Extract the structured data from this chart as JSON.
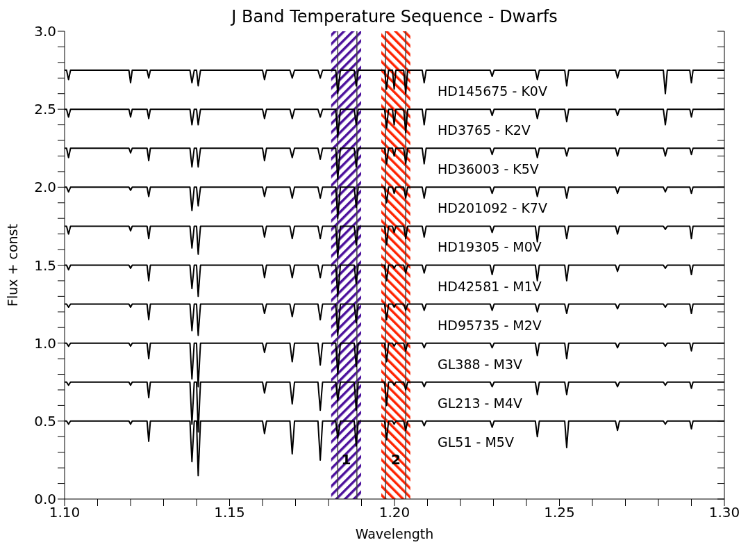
{
  "chart_data": {
    "type": "line",
    "title": "J Band Temperature Sequence - Dwarfs",
    "xlabel": "Wavelength",
    "ylabel": "Flux + const",
    "x": [
      1.1,
      1.1006,
      1.1012,
      1.1018,
      1.105,
      1.11,
      1.1195,
      1.12,
      1.1205,
      1.125,
      1.1255,
      1.126,
      1.13,
      1.1345,
      1.138,
      1.1386,
      1.1393,
      1.14,
      1.1405,
      1.1412,
      1.15,
      1.16,
      1.1606,
      1.1612,
      1.1683,
      1.169,
      1.1697,
      1.1768,
      1.1775,
      1.1782,
      1.1822,
      1.1828,
      1.1836,
      1.1878,
      1.1884,
      1.189,
      1.194,
      1.197,
      1.1976,
      1.1982,
      1.1994,
      1.1999,
      1.2004,
      1.2028,
      1.2034,
      1.204,
      1.2084,
      1.209,
      1.2096,
      1.216,
      1.229,
      1.2296,
      1.2302,
      1.2427,
      1.2433,
      1.2439,
      1.2516,
      1.2522,
      1.2528,
      1.26,
      1.267,
      1.2676,
      1.2682,
      1.2815,
      1.2821,
      1.2827,
      1.2895,
      1.29,
      1.2905,
      1.3
    ],
    "series": [
      {
        "name": "HD145675 - K0V",
        "color": "#000000",
        "values": [
          2.75,
          2.75,
          2.69,
          2.75,
          2.75,
          2.75,
          2.75,
          2.67,
          2.75,
          2.75,
          2.7,
          2.75,
          2.75,
          2.75,
          2.75,
          2.67,
          2.75,
          2.75,
          2.65,
          2.75,
          2.75,
          2.75,
          2.69,
          2.75,
          2.75,
          2.7,
          2.75,
          2.75,
          2.7,
          2.75,
          2.75,
          2.6,
          2.75,
          2.75,
          2.65,
          2.75,
          2.75,
          2.75,
          2.63,
          2.75,
          2.75,
          2.63,
          2.75,
          2.75,
          2.6,
          2.75,
          2.75,
          2.67,
          2.75,
          2.75,
          2.75,
          2.71,
          2.75,
          2.75,
          2.69,
          2.75,
          2.75,
          2.65,
          2.75,
          2.75,
          2.75,
          2.7,
          2.75,
          2.75,
          2.6,
          2.75,
          2.75,
          2.67,
          2.75,
          2.75
        ]
      },
      {
        "name": "HD3765 - K2V",
        "color": "#000000",
        "values": [
          2.5,
          2.5,
          2.45,
          2.5,
          2.5,
          2.5,
          2.5,
          2.45,
          2.5,
          2.5,
          2.44,
          2.5,
          2.5,
          2.5,
          2.5,
          2.4,
          2.5,
          2.5,
          2.4,
          2.5,
          2.5,
          2.5,
          2.44,
          2.5,
          2.5,
          2.44,
          2.5,
          2.5,
          2.45,
          2.5,
          2.5,
          2.32,
          2.5,
          2.5,
          2.4,
          2.5,
          2.5,
          2.5,
          2.38,
          2.5,
          2.5,
          2.4,
          2.5,
          2.5,
          2.35,
          2.5,
          2.5,
          2.4,
          2.5,
          2.5,
          2.5,
          2.46,
          2.5,
          2.5,
          2.44,
          2.5,
          2.5,
          2.42,
          2.5,
          2.5,
          2.5,
          2.46,
          2.5,
          2.5,
          2.4,
          2.5,
          2.5,
          2.45,
          2.5,
          2.5
        ]
      },
      {
        "name": "HD36003 - K5V",
        "color": "#000000",
        "values": [
          2.25,
          2.25,
          2.19,
          2.25,
          2.25,
          2.25,
          2.25,
          2.22,
          2.25,
          2.25,
          2.17,
          2.25,
          2.25,
          2.25,
          2.25,
          2.13,
          2.25,
          2.25,
          2.13,
          2.25,
          2.25,
          2.25,
          2.17,
          2.25,
          2.25,
          2.19,
          2.25,
          2.25,
          2.18,
          2.25,
          2.25,
          2.05,
          2.25,
          2.25,
          2.13,
          2.25,
          2.25,
          2.25,
          2.15,
          2.25,
          2.25,
          2.2,
          2.25,
          2.25,
          2.15,
          2.25,
          2.25,
          2.15,
          2.25,
          2.25,
          2.25,
          2.21,
          2.25,
          2.25,
          2.19,
          2.25,
          2.25,
          2.2,
          2.25,
          2.25,
          2.25,
          2.2,
          2.25,
          2.25,
          2.2,
          2.25,
          2.25,
          2.21,
          2.25,
          2.25
        ]
      },
      {
        "name": "HD201092 - K7V",
        "color": "#000000",
        "values": [
          2.0,
          2.0,
          1.97,
          2.0,
          2.0,
          2.0,
          2.0,
          1.98,
          2.0,
          2.0,
          1.94,
          2.0,
          2.0,
          2.0,
          2.0,
          1.85,
          2.0,
          2.0,
          1.88,
          2.0,
          2.0,
          2.0,
          1.94,
          2.0,
          2.0,
          1.93,
          2.0,
          2.0,
          1.93,
          2.0,
          2.0,
          1.8,
          2.0,
          2.0,
          1.87,
          2.0,
          2.0,
          2.0,
          1.9,
          2.0,
          2.0,
          1.96,
          2.0,
          2.0,
          1.93,
          2.0,
          2.0,
          1.93,
          2.0,
          2.0,
          2.0,
          1.96,
          2.0,
          2.0,
          1.94,
          2.0,
          2.0,
          1.93,
          2.0,
          2.0,
          2.0,
          1.96,
          2.0,
          2.0,
          1.97,
          2.0,
          2.0,
          1.96,
          2.0,
          2.0
        ]
      },
      {
        "name": "HD19305 - M0V",
        "color": "#000000",
        "values": [
          1.75,
          1.75,
          1.7,
          1.75,
          1.75,
          1.75,
          1.75,
          1.72,
          1.75,
          1.75,
          1.67,
          1.75,
          1.75,
          1.75,
          1.75,
          1.61,
          1.75,
          1.75,
          1.57,
          1.75,
          1.75,
          1.75,
          1.68,
          1.75,
          1.75,
          1.67,
          1.75,
          1.75,
          1.67,
          1.75,
          1.75,
          1.55,
          1.75,
          1.75,
          1.63,
          1.75,
          1.75,
          1.75,
          1.63,
          1.75,
          1.75,
          1.71,
          1.75,
          1.75,
          1.67,
          1.75,
          1.75,
          1.68,
          1.75,
          1.75,
          1.75,
          1.71,
          1.75,
          1.75,
          1.65,
          1.75,
          1.75,
          1.67,
          1.75,
          1.75,
          1.75,
          1.7,
          1.75,
          1.75,
          1.73,
          1.75,
          1.75,
          1.67,
          1.75,
          1.75
        ]
      },
      {
        "name": "HD42581 - M1V",
        "color": "#000000",
        "values": [
          1.5,
          1.5,
          1.47,
          1.5,
          1.5,
          1.5,
          1.5,
          1.48,
          1.5,
          1.5,
          1.4,
          1.5,
          1.5,
          1.5,
          1.5,
          1.35,
          1.5,
          1.5,
          1.3,
          1.5,
          1.5,
          1.5,
          1.42,
          1.5,
          1.5,
          1.42,
          1.5,
          1.5,
          1.42,
          1.5,
          1.5,
          1.3,
          1.5,
          1.5,
          1.38,
          1.5,
          1.5,
          1.5,
          1.4,
          1.5,
          1.5,
          1.48,
          1.5,
          1.5,
          1.45,
          1.5,
          1.5,
          1.45,
          1.5,
          1.5,
          1.5,
          1.44,
          1.5,
          1.5,
          1.4,
          1.5,
          1.5,
          1.4,
          1.5,
          1.5,
          1.5,
          1.46,
          1.5,
          1.5,
          1.48,
          1.5,
          1.5,
          1.44,
          1.5,
          1.5
        ]
      },
      {
        "name": "HD95735 - M2V",
        "color": "#000000",
        "values": [
          1.25,
          1.25,
          1.23,
          1.25,
          1.25,
          1.25,
          1.25,
          1.23,
          1.25,
          1.25,
          1.15,
          1.25,
          1.25,
          1.25,
          1.25,
          1.08,
          1.25,
          1.25,
          1.05,
          1.25,
          1.25,
          1.25,
          1.19,
          1.25,
          1.25,
          1.17,
          1.25,
          1.25,
          1.15,
          1.25,
          1.25,
          1.05,
          1.25,
          1.25,
          1.13,
          1.25,
          1.25,
          1.25,
          1.15,
          1.25,
          1.25,
          1.23,
          1.25,
          1.25,
          1.21,
          1.25,
          1.25,
          1.21,
          1.25,
          1.25,
          1.25,
          1.21,
          1.25,
          1.25,
          1.2,
          1.25,
          1.25,
          1.19,
          1.25,
          1.25,
          1.25,
          1.22,
          1.25,
          1.25,
          1.23,
          1.25,
          1.25,
          1.19,
          1.25,
          1.25
        ]
      },
      {
        "name": "GL388 - M3V",
        "color": "#000000",
        "values": [
          1.0,
          1.0,
          0.98,
          1.0,
          1.0,
          1.0,
          1.0,
          0.98,
          1.0,
          1.0,
          0.9,
          1.0,
          1.0,
          1.0,
          1.0,
          0.77,
          1.0,
          1.0,
          0.72,
          1.0,
          1.0,
          1.0,
          0.94,
          1.0,
          1.0,
          0.88,
          1.0,
          1.0,
          0.86,
          1.0,
          1.0,
          0.8,
          1.0,
          1.0,
          0.85,
          1.0,
          1.0,
          1.0,
          0.88,
          1.0,
          1.0,
          0.98,
          1.0,
          1.0,
          0.95,
          1.0,
          1.0,
          0.97,
          1.0,
          1.0,
          1.0,
          0.97,
          1.0,
          1.0,
          0.92,
          1.0,
          1.0,
          0.9,
          1.0,
          1.0,
          1.0,
          0.97,
          1.0,
          1.0,
          0.98,
          1.0,
          1.0,
          0.95,
          1.0,
          1.0
        ]
      },
      {
        "name": "GL213 - M4V",
        "color": "#000000",
        "values": [
          0.75,
          0.75,
          0.73,
          0.75,
          0.75,
          0.75,
          0.75,
          0.73,
          0.75,
          0.75,
          0.65,
          0.75,
          0.75,
          0.75,
          0.75,
          0.48,
          0.75,
          0.75,
          0.43,
          0.75,
          0.75,
          0.75,
          0.68,
          0.75,
          0.75,
          0.61,
          0.75,
          0.75,
          0.57,
          0.75,
          0.75,
          0.63,
          0.75,
          0.75,
          0.57,
          0.75,
          0.75,
          0.75,
          0.6,
          0.75,
          0.75,
          0.73,
          0.75,
          0.75,
          0.7,
          0.75,
          0.75,
          0.72,
          0.75,
          0.75,
          0.75,
          0.72,
          0.75,
          0.75,
          0.67,
          0.75,
          0.75,
          0.67,
          0.75,
          0.75,
          0.75,
          0.72,
          0.75,
          0.75,
          0.73,
          0.75,
          0.75,
          0.71,
          0.75,
          0.75
        ]
      },
      {
        "name": "GL51 - M5V",
        "color": "#000000",
        "values": [
          0.5,
          0.5,
          0.48,
          0.5,
          0.5,
          0.5,
          0.5,
          0.48,
          0.5,
          0.5,
          0.37,
          0.5,
          0.5,
          0.5,
          0.5,
          0.24,
          0.5,
          0.5,
          0.15,
          0.5,
          0.5,
          0.5,
          0.42,
          0.5,
          0.5,
          0.29,
          0.5,
          0.5,
          0.25,
          0.5,
          0.5,
          0.39,
          0.5,
          0.5,
          0.34,
          0.5,
          0.5,
          0.5,
          0.38,
          0.5,
          0.5,
          0.48,
          0.5,
          0.5,
          0.44,
          0.5,
          0.5,
          0.47,
          0.5,
          0.5,
          0.5,
          0.46,
          0.5,
          0.5,
          0.4,
          0.5,
          0.5,
          0.33,
          0.5,
          0.5,
          0.5,
          0.44,
          0.5,
          0.5,
          0.48,
          0.5,
          0.5,
          0.45,
          0.5,
          0.5
        ]
      }
    ],
    "bands": [
      {
        "axis": "x",
        "from": 1.1808,
        "to": 1.1899,
        "label": "1",
        "color": "#4b0f9c"
      },
      {
        "axis": "x",
        "from": 1.196,
        "to": 1.2048,
        "label": "2",
        "color": "#ff2200"
      }
    ],
    "ref_lines": [
      {
        "axis": "x",
        "value": 1.1828,
        "color": "#444444"
      },
      {
        "axis": "x",
        "value": 1.1886,
        "color": "#444444"
      },
      {
        "axis": "x",
        "value": 1.1973,
        "color": "#444444"
      },
      {
        "axis": "x",
        "value": 1.2034,
        "color": "#444444"
      }
    ],
    "xlim": [
      1.1,
      1.3
    ],
    "xticks": [
      {
        "value": 1.1,
        "label": "1.10"
      },
      {
        "value": 1.11,
        "label": null
      },
      {
        "value": 1.12,
        "label": null
      },
      {
        "value": 1.13,
        "label": null
      },
      {
        "value": 1.14,
        "label": null
      },
      {
        "value": 1.15,
        "label": "1.15"
      },
      {
        "value": 1.16,
        "label": null
      },
      {
        "value": 1.17,
        "label": null
      },
      {
        "value": 1.18,
        "label": null
      },
      {
        "value": 1.19,
        "label": null
      },
      {
        "value": 1.2,
        "label": "1.20"
      },
      {
        "value": 1.21,
        "label": null
      },
      {
        "value": 1.22,
        "label": null
      },
      {
        "value": 1.23,
        "label": null
      },
      {
        "value": 1.24,
        "label": null
      },
      {
        "value": 1.25,
        "label": "1.25"
      },
      {
        "value": 1.26,
        "label": null
      },
      {
        "value": 1.27,
        "label": null
      },
      {
        "value": 1.28,
        "label": null
      },
      {
        "value": 1.29,
        "label": null
      },
      {
        "value": 1.3,
        "label": "1.30"
      }
    ],
    "ylim": [
      0,
      3.0
    ],
    "yticks": [
      {
        "value": 0,
        "label": "0.0"
      },
      {
        "value": 0.1,
        "label": null
      },
      {
        "value": 0.2,
        "label": null
      },
      {
        "value": 0.3,
        "label": null
      },
      {
        "value": 0.4,
        "label": null
      },
      {
        "value": 0.5,
        "label": "0.5"
      },
      {
        "value": 0.6,
        "label": null
      },
      {
        "value": 0.7,
        "label": null
      },
      {
        "value": 0.8,
        "label": null
      },
      {
        "value": 0.9,
        "label": null
      },
      {
        "value": 1.0,
        "label": "1.0"
      },
      {
        "value": 1.1,
        "label": null
      },
      {
        "value": 1.2,
        "label": null
      },
      {
        "value": 1.3,
        "label": null
      },
      {
        "value": 1.4,
        "label": null
      },
      {
        "value": 1.5,
        "label": "1.5"
      },
      {
        "value": 1.6,
        "label": null
      },
      {
        "value": 1.7,
        "label": null
      },
      {
        "value": 1.8,
        "label": null
      },
      {
        "value": 1.9,
        "label": null
      },
      {
        "value": 2.0,
        "label": "2.0"
      },
      {
        "value": 2.1,
        "label": null
      },
      {
        "value": 2.2,
        "label": null
      },
      {
        "value": 2.3,
        "label": null
      },
      {
        "value": 2.4,
        "label": null
      },
      {
        "value": 2.5,
        "label": "2.5"
      },
      {
        "value": 2.6,
        "label": null
      },
      {
        "value": 2.7,
        "label": null
      },
      {
        "value": 2.8,
        "label": null
      },
      {
        "value": 2.9,
        "label": null
      },
      {
        "value": 3.0,
        "label": "3.0"
      }
    ],
    "grid": false,
    "legend": false
  }
}
